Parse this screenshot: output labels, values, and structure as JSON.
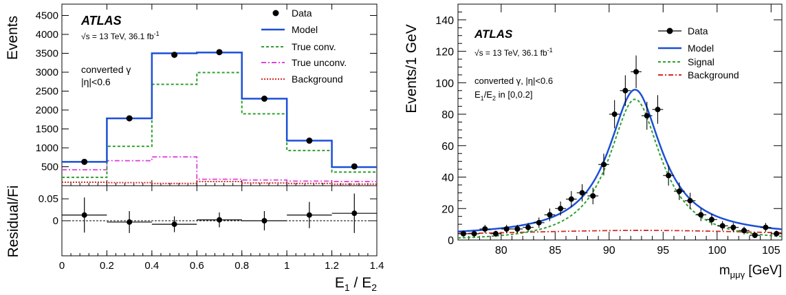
{
  "chart_data": [
    {
      "type": "histogram",
      "panel": "left-top",
      "ylabel": "Events",
      "xlim": [
        0,
        1.4
      ],
      "ylim": [
        0,
        4800
      ],
      "yticks": [
        500,
        1000,
        1500,
        2000,
        2500,
        3000,
        3500,
        4000,
        4500
      ],
      "bins": [
        0,
        0.2,
        0.4,
        0.6,
        0.8,
        1.0,
        1.2,
        1.4
      ],
      "experiment": "ATLAS",
      "energy_text": "√s = 13 TeV, 36.1 fb",
      "energy_sup": "-1",
      "annotation_lines": [
        "converted γ",
        "|η|<0.6"
      ],
      "legend": [
        "Data",
        "Model",
        "True conv.",
        "True unconv.",
        "Background"
      ],
      "legend_placement": "top-right",
      "series": [
        {
          "name": "Data",
          "style": "points",
          "color": "#000000",
          "x": [
            0.1,
            0.3,
            0.5,
            0.7,
            0.9,
            1.1,
            1.3
          ],
          "values": [
            630,
            1780,
            3460,
            3530,
            2300,
            1190,
            510
          ]
        },
        {
          "name": "Model",
          "style": "step-solid",
          "color": "#1a4fd6",
          "values": [
            630,
            1780,
            3500,
            3520,
            2300,
            1190,
            490
          ]
        },
        {
          "name": "True conv.",
          "style": "step-dashed",
          "color": "#2ca02c",
          "values": [
            220,
            1040,
            2680,
            2990,
            1900,
            930,
            360
          ]
        },
        {
          "name": "True unconv.",
          "style": "step-dashdot",
          "color": "#e040e0",
          "values": [
            420,
            660,
            760,
            170,
            150,
            120,
            110
          ]
        },
        {
          "name": "Background",
          "style": "step-dotted",
          "color": "#d62728",
          "values": [
            90,
            80,
            60,
            110,
            70,
            60,
            40
          ]
        }
      ]
    },
    {
      "type": "scatter",
      "panel": "left-bottom",
      "ylabel": "Residual/Fi",
      "xlabel": "E",
      "xlabel_sub1": "1",
      "xlabel_mid": " / E",
      "xlabel_sub2": "2",
      "xlim": [
        0,
        1.4
      ],
      "ylim": [
        -0.08,
        0.08
      ],
      "xticks": [
        0,
        0.2,
        0.4,
        0.6,
        0.8,
        1,
        1.2,
        1.4
      ],
      "yticks": [
        0,
        0.05
      ],
      "reference_line": 0,
      "series": [
        {
          "name": "Residual",
          "x": [
            0.1,
            0.3,
            0.5,
            0.7,
            0.9,
            1.1,
            1.3
          ],
          "values": [
            0.013,
            -0.003,
            -0.008,
            0.002,
            0.0,
            0.013,
            0.017
          ],
          "errors": [
            0.04,
            0.025,
            0.018,
            0.017,
            0.022,
            0.03,
            0.045
          ],
          "xerr": 0.1
        }
      ]
    },
    {
      "type": "scatter",
      "panel": "right",
      "ylabel": "Events/1 GeV",
      "xlabel": "m",
      "xlabel_sub": "μμγ",
      "xlabel_unit": " [GeV]",
      "xlim": [
        76,
        106
      ],
      "ylim": [
        0,
        150
      ],
      "xticks": [
        80,
        85,
        90,
        95,
        100,
        105
      ],
      "yticks": [
        0,
        20,
        40,
        60,
        80,
        100,
        120,
        140
      ],
      "experiment": "ATLAS",
      "energy_text": "√s = 13 TeV, 36.1 fb",
      "energy_sup": "-1",
      "annotation_lines": [
        "converted γ, |η|<0.6",
        "E"
      ],
      "annotation_sub": "1",
      "annotation_tail": "/E",
      "annotation_sub2": "2",
      "annotation_tail2": " in [0,0.2]",
      "legend": [
        "Data",
        "Model",
        "Signal",
        "Background"
      ],
      "legend_placement": "top-right",
      "series": [
        {
          "name": "Data",
          "color": "#000000",
          "x": [
            76.5,
            77.5,
            78.5,
            79.5,
            80.5,
            81.5,
            82.5,
            83.5,
            84.5,
            85.5,
            86.5,
            87.5,
            88.5,
            89.5,
            90.5,
            91.5,
            92.5,
            93.5,
            94.5,
            95.5,
            96.5,
            97.5,
            98.5,
            99.5,
            100.5,
            101.5,
            102.5,
            103.5,
            104.5,
            105.5
          ],
          "values": [
            4,
            4,
            7,
            4,
            7,
            7,
            8,
            11,
            16,
            20,
            26,
            30,
            28,
            48,
            80,
            95,
            107,
            79,
            83,
            41,
            31,
            25,
            16,
            13,
            9,
            8,
            6,
            3,
            8,
            4
          ]
        },
        {
          "name": "Model",
          "color": "#1a4fd6"
        },
        {
          "name": "Signal",
          "color": "#2ca02c"
        },
        {
          "name": "Background",
          "color": "#d62728"
        }
      ]
    }
  ]
}
